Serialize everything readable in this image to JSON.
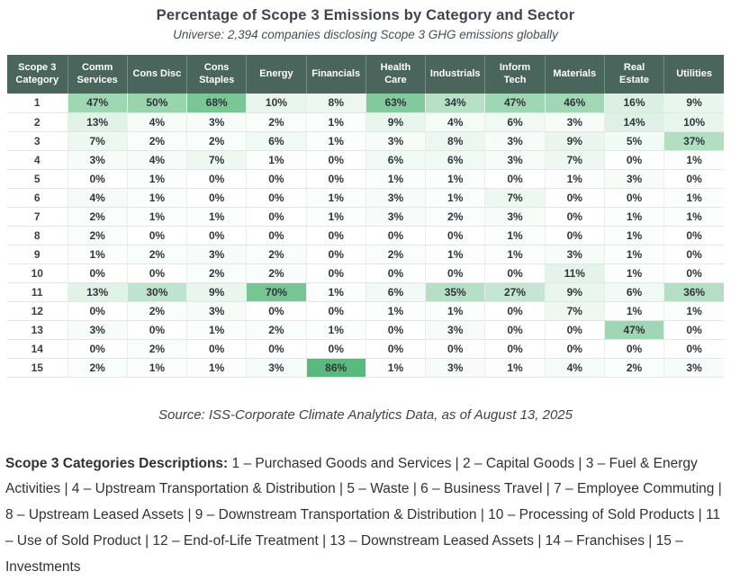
{
  "colors": {
    "header_bg": "#4A655C",
    "heat_min_color": "#FFFFFF",
    "heat_max_color": "#42AF6A"
  },
  "header": {
    "title": "Percentage of Scope 3 Emissions by Category and Sector",
    "subtitle": "Universe: 2,394 companies disclosing Scope 3 GHG emissions globally"
  },
  "chart_data": {
    "type": "heatmap",
    "title": "Percentage of Scope 3 Emissions by Category and Sector",
    "subtitle": "Universe: 2,394 companies disclosing Scope 3 GHG emissions globally",
    "row_header_label": "Scope 3 Category",
    "columns": [
      "Comm Services",
      "Cons Disc",
      "Cons Staples",
      "Energy",
      "Financials",
      "Health Care",
      "Industrials",
      "Inform Tech",
      "Materials",
      "Real Estate",
      "Utilities"
    ],
    "rows": [
      "1",
      "2",
      "3",
      "4",
      "5",
      "6",
      "7",
      "8",
      "9",
      "10",
      "11",
      "12",
      "13",
      "14",
      "15"
    ],
    "unit": "%",
    "values": [
      [
        47,
        50,
        68,
        10,
        8,
        63,
        34,
        47,
        46,
        16,
        9
      ],
      [
        13,
        4,
        3,
        2,
        1,
        9,
        4,
        6,
        3,
        14,
        10
      ],
      [
        7,
        2,
        2,
        6,
        1,
        3,
        8,
        3,
        9,
        5,
        37
      ],
      [
        3,
        4,
        7,
        1,
        0,
        6,
        6,
        3,
        7,
        0,
        1
      ],
      [
        0,
        1,
        0,
        0,
        0,
        1,
        1,
        0,
        1,
        3,
        0
      ],
      [
        4,
        1,
        0,
        0,
        1,
        3,
        1,
        7,
        0,
        0,
        1
      ],
      [
        2,
        1,
        1,
        0,
        1,
        3,
        2,
        3,
        0,
        1,
        1
      ],
      [
        2,
        0,
        0,
        0,
        0,
        0,
        0,
        1,
        0,
        1,
        0
      ],
      [
        1,
        2,
        3,
        2,
        0,
        2,
        1,
        1,
        3,
        1,
        0
      ],
      [
        0,
        0,
        2,
        2,
        0,
        0,
        0,
        0,
        11,
        1,
        0
      ],
      [
        13,
        30,
        9,
        70,
        1,
        6,
        35,
        27,
        9,
        6,
        36
      ],
      [
        0,
        2,
        3,
        0,
        0,
        1,
        1,
        0,
        7,
        1,
        1
      ],
      [
        3,
        0,
        1,
        2,
        1,
        0,
        3,
        0,
        0,
        47,
        0
      ],
      [
        0,
        2,
        0,
        0,
        0,
        0,
        0,
        0,
        0,
        0,
        0
      ],
      [
        2,
        1,
        1,
        3,
        86,
        1,
        3,
        1,
        4,
        2,
        3
      ]
    ],
    "color_scale": {
      "min": 0,
      "max": 100,
      "gamma": 0.9,
      "min_color": "#FFFFFF",
      "max_color": "#42AF6A"
    },
    "grid": true,
    "legend": false
  },
  "source": {
    "text": "Source: ISS-Corporate Climate Analytics Data, as of August 13, 2025"
  },
  "descriptions": {
    "lead": "Scope 3 Categories Descriptions:",
    "separator": " | ",
    "items": [
      "1 – Purchased Goods and Services",
      "2 – Capital Goods",
      "3 – Fuel & Energy Activities",
      "4 – Upstream Transportation & Distribution",
      "5 – Waste",
      "6 – Business Travel",
      "7 – Employee Commuting",
      "8 – Upstream Leased Assets",
      "9 – Downstream Transportation & Distribution",
      "10 – Processing of Sold Products",
      "11 – Use of Sold Product",
      "12 – End-of-Life Treatment",
      "13 – Downstream Leased Assets",
      "14 – Franchises",
      "15 – Investments"
    ]
  }
}
